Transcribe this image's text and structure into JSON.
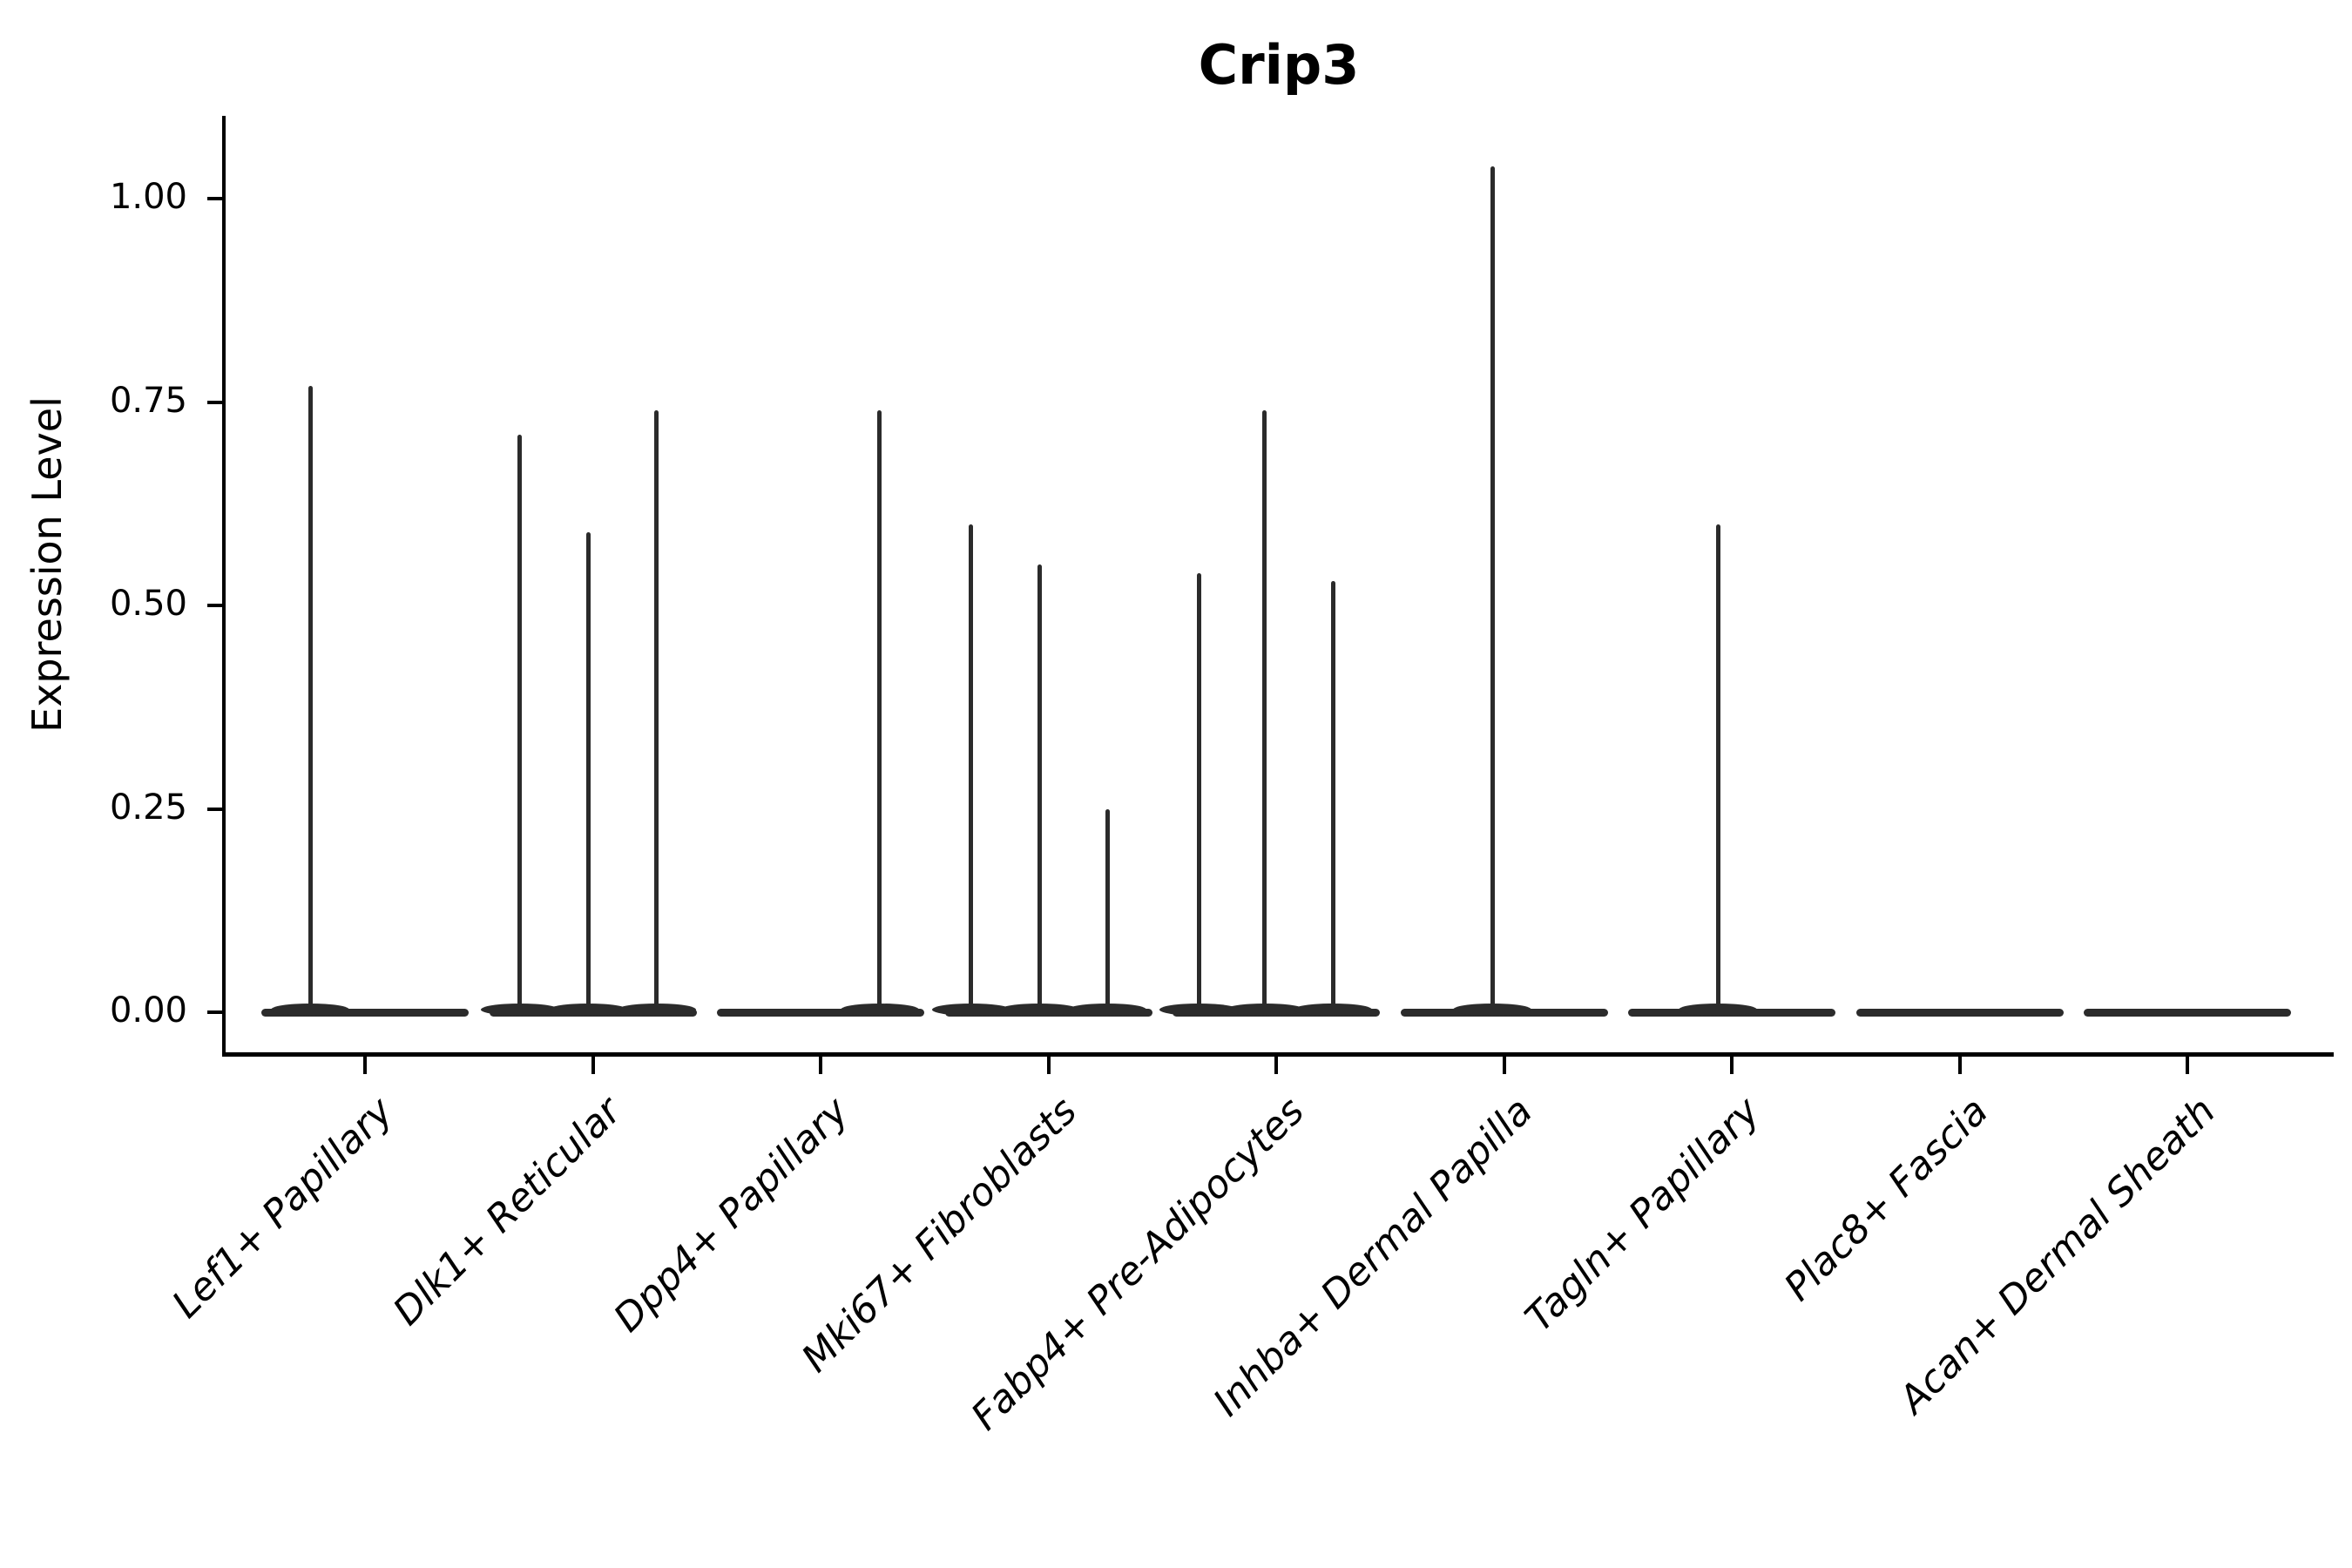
{
  "figure": {
    "title": "Crip3"
  },
  "chart_data": {
    "type": "violin",
    "title": "Crip3",
    "xlabel": "",
    "ylabel": "Expression Level",
    "ylim": [
      0,
      1.1
    ],
    "yticks": [
      "0.00",
      "0.25",
      "0.50",
      "0.75",
      "1.00"
    ],
    "ytick_values": [
      0.0,
      0.25,
      0.5,
      0.75,
      1.0
    ],
    "grid": false,
    "legend": "none",
    "x_label_rotation_deg": 45,
    "categories": [
      "Lef1+ Papillary",
      "Dlk1+ Reticular",
      "Dpp4+ Papillary",
      "Mki67+ Fibroblasts",
      "Fabp4+ Pre-Adipocytes",
      "Inhba+ Dermal Papilla",
      "Tagln+ Papillary",
      "Plac8+ Fascia",
      "Acan+ Dermal Sheath"
    ],
    "violins": [
      {
        "category": "Lef1+ Papillary",
        "zero_density_band": true,
        "spikes": [
          {
            "value": 0.77,
            "offset": -0.24
          }
        ]
      },
      {
        "category": "Dlk1+ Reticular",
        "zero_density_band": true,
        "spikes": [
          {
            "value": 0.71,
            "offset": -0.32
          },
          {
            "value": 0.59,
            "offset": -0.02
          },
          {
            "value": 0.74,
            "offset": 0.28
          }
        ]
      },
      {
        "category": "Dpp4+ Papillary",
        "zero_density_band": true,
        "spikes": [
          {
            "value": 0.74,
            "offset": 0.26
          }
        ]
      },
      {
        "category": "Mki67+ Fibroblasts",
        "zero_density_band": true,
        "spikes": [
          {
            "value": 0.6,
            "offset": -0.34
          },
          {
            "value": 0.55,
            "offset": -0.04
          },
          {
            "value": 0.25,
            "offset": 0.26
          }
        ]
      },
      {
        "category": "Fabp4+ Pre-Adipocytes",
        "zero_density_band": true,
        "spikes": [
          {
            "value": 0.54,
            "offset": -0.34
          },
          {
            "value": 0.74,
            "offset": -0.05
          },
          {
            "value": 0.53,
            "offset": 0.25
          }
        ]
      },
      {
        "category": "Inhba+ Dermal Papilla",
        "zero_density_band": true,
        "spikes": [
          {
            "value": 1.04,
            "offset": -0.05
          }
        ]
      },
      {
        "category": "Tagln+ Papillary",
        "zero_density_band": true,
        "spikes": [
          {
            "value": 0.6,
            "offset": -0.06
          }
        ]
      },
      {
        "category": "Plac8+ Fascia",
        "zero_density_band": true,
        "spikes": []
      },
      {
        "category": "Acan+ Dermal Sheath",
        "zero_density_band": true,
        "spikes": []
      }
    ],
    "colors": {
      "violin_line": "#2b2b2b",
      "axis": "#000000",
      "text": "#000000",
      "background": "#ffffff"
    }
  }
}
